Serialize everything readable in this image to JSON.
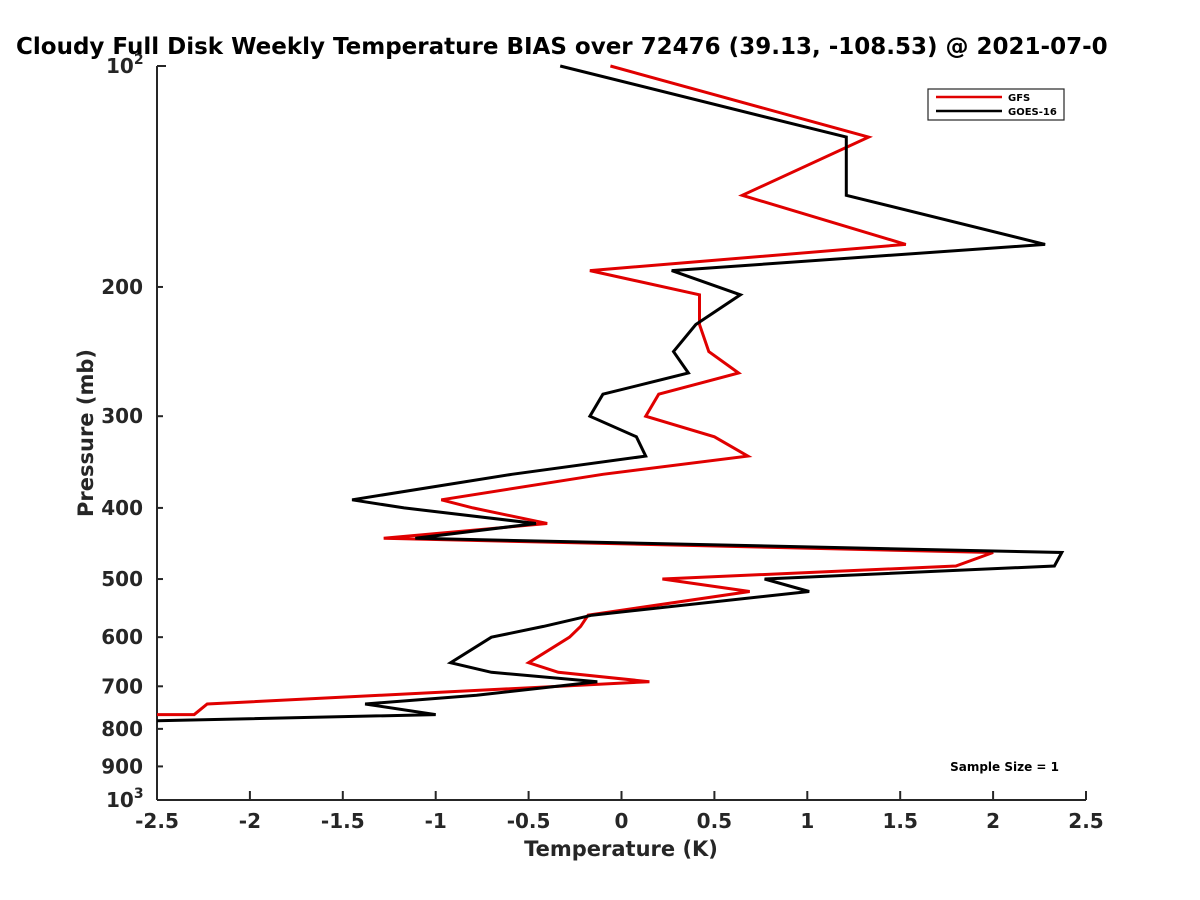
{
  "chart_data": {
    "type": "line",
    "title": "Cloudy Full Disk Weekly Temperature BIAS over 72476 (39.13, -108.53) @ 2021-07-0",
    "xlabel": "Temperature (K)",
    "ylabel": "Pressure (mb)",
    "xlim": [
      -2.5,
      2.5
    ],
    "ylim": [
      100,
      1000
    ],
    "yscale": "log",
    "yreversed": true,
    "x_ticks": [
      "-2.5",
      "-2",
      "-1.5",
      "-1",
      "-0.5",
      "0",
      "0.5",
      "1",
      "1.5",
      "2",
      "2.5"
    ],
    "y_ticks": [
      {
        "value": 100,
        "label": "10",
        "sup": "2"
      },
      {
        "value": 200,
        "label": "200"
      },
      {
        "value": 300,
        "label": "300"
      },
      {
        "value": 400,
        "label": "400"
      },
      {
        "value": 500,
        "label": "500"
      },
      {
        "value": 600,
        "label": "600"
      },
      {
        "value": 700,
        "label": "700"
      },
      {
        "value": 800,
        "label": "800"
      },
      {
        "value": 900,
        "label": "900"
      },
      {
        "value": 1000,
        "label": "10",
        "sup": "3"
      }
    ],
    "grid": false,
    "legend_position": "top-right",
    "annotation": "Sample Size = 1",
    "series": [
      {
        "name": "GFS",
        "color": "#e00000",
        "points": [
          [
            -0.06,
            100
          ],
          [
            1.33,
            125
          ],
          [
            0.65,
            150
          ],
          [
            1.53,
            175
          ],
          [
            -0.17,
            190
          ],
          [
            0.42,
            205
          ],
          [
            0.42,
            225
          ],
          [
            0.47,
            245
          ],
          [
            0.63,
            262
          ],
          [
            0.2,
            280
          ],
          [
            0.13,
            300
          ],
          [
            0.5,
            320
          ],
          [
            0.68,
            340
          ],
          [
            -0.1,
            360
          ],
          [
            -0.97,
            390
          ],
          [
            -0.8,
            400
          ],
          [
            -0.4,
            420
          ],
          [
            -1.28,
            440
          ],
          [
            2.0,
            460
          ],
          [
            1.8,
            480
          ],
          [
            0.22,
            500
          ],
          [
            0.69,
            520
          ],
          [
            -0.18,
            560
          ],
          [
            -0.22,
            580
          ],
          [
            -0.28,
            600
          ],
          [
            -0.5,
            650
          ],
          [
            -0.34,
            670
          ],
          [
            0.15,
            690
          ],
          [
            -1.3,
            720
          ],
          [
            -2.23,
            740
          ],
          [
            -2.3,
            765
          ],
          [
            -2.5,
            765
          ]
        ]
      },
      {
        "name": "GOES-16",
        "color": "#000000",
        "points": [
          [
            -0.33,
            100
          ],
          [
            1.21,
            125
          ],
          [
            1.21,
            150
          ],
          [
            2.28,
            175
          ],
          [
            0.27,
            190
          ],
          [
            0.64,
            205
          ],
          [
            0.4,
            225
          ],
          [
            0.28,
            245
          ],
          [
            0.36,
            262
          ],
          [
            -0.1,
            280
          ],
          [
            -0.17,
            300
          ],
          [
            0.08,
            320
          ],
          [
            0.13,
            340
          ],
          [
            -0.59,
            360
          ],
          [
            -1.45,
            390
          ],
          [
            -1.17,
            400
          ],
          [
            -0.46,
            420
          ],
          [
            -1.11,
            440
          ],
          [
            2.37,
            460
          ],
          [
            2.33,
            480
          ],
          [
            0.77,
            500
          ],
          [
            1.01,
            520
          ],
          [
            -0.16,
            560
          ],
          [
            -0.42,
            580
          ],
          [
            -0.7,
            600
          ],
          [
            -0.92,
            650
          ],
          [
            -0.7,
            670
          ],
          [
            -0.13,
            690
          ],
          [
            -0.78,
            720
          ],
          [
            -1.38,
            740
          ],
          [
            -1.0,
            765
          ],
          [
            -2.5,
            780
          ]
        ]
      }
    ]
  }
}
